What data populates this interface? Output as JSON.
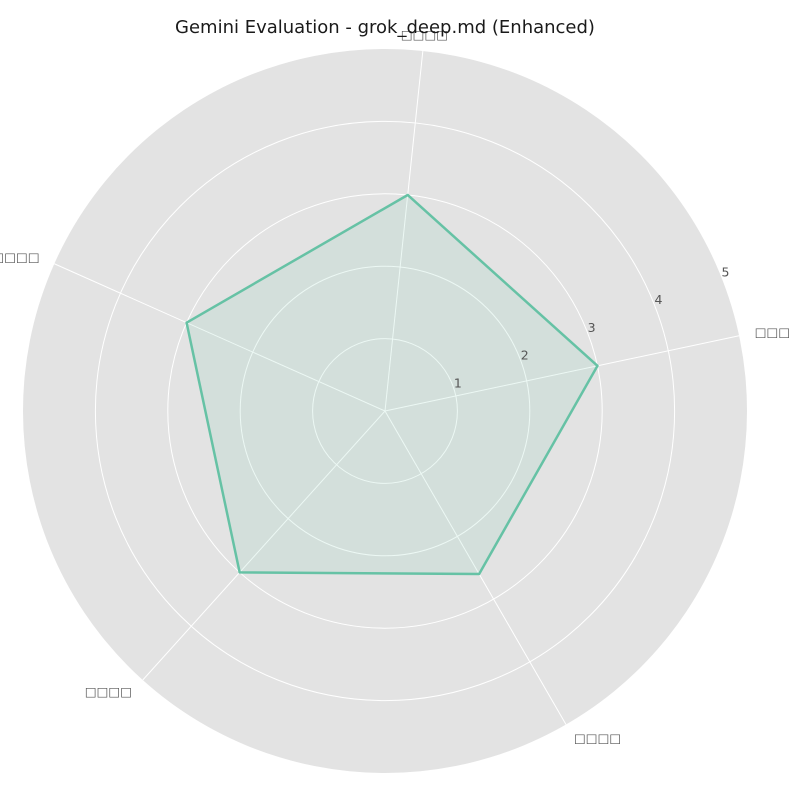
{
  "chart_data": {
    "type": "radar",
    "title": "Gemini Evaluation - grok_deep.md (Enhanced)",
    "categories": [
      "□□□",
      "□□□□",
      "□□□□□",
      "□□□□",
      "□□□□"
    ],
    "series": [
      {
        "values": [
          3,
          3,
          3,
          3,
          2.6
        ]
      }
    ],
    "r_ticks": [
      1,
      2,
      3,
      4,
      5
    ],
    "rlim": [
      0,
      5
    ],
    "grid": true,
    "legend": "none",
    "colors": {
      "background": "#e3e3e3",
      "grid": "#ffffff",
      "series_line": "#66c2a5",
      "series_fill": "#66c2a5"
    }
  }
}
